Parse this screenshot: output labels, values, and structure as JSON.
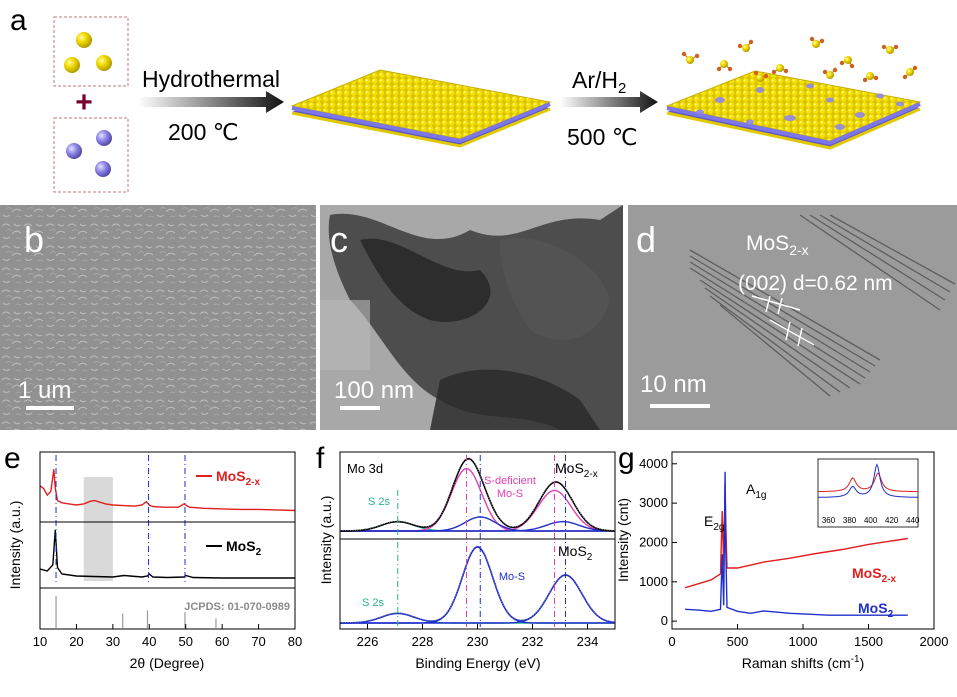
{
  "figure": {
    "panel_labels": [
      "a",
      "b",
      "c",
      "d",
      "e",
      "f",
      "g"
    ],
    "colors": {
      "sulfur": "#f0d800",
      "molybdenum": "#8c86e6",
      "red": "#e01f1f",
      "black": "#000000",
      "blue": "#1f2fcc",
      "pink": "#e040b0",
      "teal": "#27b38a",
      "gray": "#9a9a9a"
    }
  },
  "panel_a": {
    "step1": {
      "label": "Hydrothermal",
      "temp": "200 ℃"
    },
    "step2": {
      "label_main": "Ar/H",
      "label_sub": "2",
      "temp": "500 ℃"
    },
    "plus": "+"
  },
  "panel_b": {
    "scale_bar": "1 um"
  },
  "panel_c": {
    "scale_bar": "100 nm"
  },
  "panel_d": {
    "title_main": "MoS",
    "title_sub": "2-x",
    "annotation": "(002) d=0.62 nm",
    "scale_bar": "10 nm"
  },
  "chart_data": [
    {
      "type": "line",
      "panel": "e",
      "xlabel": "2θ (Degree)",
      "ylabel": "Intensity (a.u.)",
      "xlim": [
        10,
        80
      ],
      "xticks": [
        10,
        20,
        30,
        40,
        50,
        60,
        70,
        80
      ],
      "series": [
        {
          "name": "MoS2-x",
          "color": "#e01f1f",
          "x": [
            10,
            11,
            12,
            13,
            13.8,
            14.2,
            14.8,
            16,
            18,
            20,
            22,
            24,
            25,
            26,
            28,
            30,
            33,
            36,
            38,
            39.2,
            40,
            41,
            44,
            48,
            49.5,
            51,
            55,
            60,
            65,
            70,
            75,
            80
          ],
          "y": [
            0.55,
            0.5,
            0.38,
            0.45,
            0.85,
            0.5,
            0.28,
            0.24,
            0.22,
            0.2,
            0.22,
            0.27,
            0.28,
            0.26,
            0.22,
            0.2,
            0.19,
            0.18,
            0.2,
            0.26,
            0.2,
            0.17,
            0.16,
            0.16,
            0.22,
            0.16,
            0.14,
            0.13,
            0.12,
            0.12,
            0.11,
            0.1
          ]
        },
        {
          "name": "MoS2",
          "color": "#000000",
          "x": [
            10,
            12,
            13.5,
            14.2,
            14.8,
            16,
            20,
            25,
            30,
            33,
            38,
            39.5,
            40,
            41,
            45,
            49.5,
            50,
            52,
            60,
            70,
            80
          ],
          "y": [
            0.22,
            0.18,
            0.3,
            1.0,
            0.25,
            0.12,
            0.08,
            0.07,
            0.06,
            0.09,
            0.06,
            0.08,
            0.12,
            0.06,
            0.05,
            0.06,
            0.09,
            0.05,
            0.04,
            0.04,
            0.04
          ]
        },
        {
          "name": "JCPDS: 01-070-0989",
          "color": "#9a9a9a",
          "type": "stick",
          "x": [
            14.4,
            32.7,
            39.5,
            49.8,
            58.3
          ],
          "y": [
            1.0,
            0.45,
            0.55,
            0.5,
            0.3
          ]
        }
      ],
      "legend": [
        {
          "main": "MoS",
          "sub": "2-x",
          "color": "#e01f1f"
        },
        {
          "main": "MoS",
          "sub": "2",
          "color": "#000000"
        }
      ],
      "jcpds_label": "JCPDS: 01-070-0989",
      "highlight_range": [
        22,
        30
      ],
      "dashed_lines": [
        14.4,
        39.8,
        49.8
      ]
    },
    {
      "type": "line",
      "panel": "f",
      "xlabel": "Binding Energy (eV)",
      "ylabel": "Intensity (a.u.)",
      "xlim": [
        225,
        235
      ],
      "xticks": [
        226,
        228,
        230,
        232,
        234
      ],
      "title": "Mo 3d",
      "upper_label_main": "MoS",
      "upper_label_sub": "2-x",
      "lower_label_main": "MoS",
      "lower_label_sub": "2",
      "annotations": {
        "s2s_top": "S 2s",
        "s2s_bottom": "S 2s",
        "s_deficient_line1": "S-deficient",
        "s_deficient_line2": "Mo-S",
        "mo_s": "Mo-S"
      },
      "peaks_top": [
        {
          "name": "S 2s",
          "center": 227.1,
          "height": 0.12,
          "width": 0.6,
          "color": "#27b38a"
        },
        {
          "name": "S-deficient Mo 3d5/2",
          "center": 229.6,
          "height": 0.8,
          "width": 0.55,
          "color": "#e040b0"
        },
        {
          "name": "S-deficient Mo 3d3/2",
          "center": 232.8,
          "height": 0.52,
          "width": 0.6,
          "color": "#e040b0"
        },
        {
          "name": "Mo-S 3d5/2",
          "center": 230.1,
          "height": 0.18,
          "width": 0.55,
          "color": "#1f2fcc"
        },
        {
          "name": "Mo-S 3d3/2",
          "center": 233.1,
          "height": 0.12,
          "width": 0.6,
          "color": "#1f2fcc"
        }
      ],
      "peaks_bottom": [
        {
          "name": "S 2s",
          "center": 227.1,
          "height": 0.12,
          "width": 0.6,
          "color": "#27b38a"
        },
        {
          "name": "Mo-S 3d5/2",
          "center": 230.0,
          "height": 0.95,
          "width": 0.55,
          "color": "#1f2fcc"
        },
        {
          "name": "Mo-S 3d3/2",
          "center": 233.2,
          "height": 0.6,
          "width": 0.6,
          "color": "#1f2fcc"
        }
      ],
      "dashed_lines_pink": [
        229.6,
        232.8
      ],
      "dashed_lines_blue": [
        230.1,
        233.2
      ],
      "dashed_lines_teal": [
        227.1
      ]
    },
    {
      "type": "line",
      "panel": "g",
      "xlabel": "Raman shifts (cm",
      "xlabel_sup": "-1",
      "xlabel_end": ")",
      "ylabel": "Intensity (cnt)",
      "xlim": [
        0,
        2000
      ],
      "ylim": [
        -200,
        4300
      ],
      "xticks": [
        0,
        500,
        1000,
        1500,
        2000
      ],
      "yticks": [
        0,
        1000,
        2000,
        3000,
        4000
      ],
      "series": [
        {
          "name": "MoS2-x",
          "color": "#e01f1f",
          "x": [
            100,
            200,
            300,
            370,
            383,
            395,
            405,
            410,
            420,
            500,
            700,
            900,
            1100,
            1300,
            1500,
            1700,
            1800
          ],
          "y": [
            850,
            950,
            1050,
            1200,
            2800,
            1400,
            3500,
            2600,
            1350,
            1350,
            1500,
            1600,
            1720,
            1820,
            1950,
            2050,
            2100
          ]
        },
        {
          "name": "MoS2",
          "color": "#1f2fcc",
          "x": [
            100,
            200,
            300,
            370,
            383,
            395,
            405,
            410,
            420,
            500,
            600,
            700,
            900,
            1200,
            1500,
            1800
          ],
          "y": [
            300,
            280,
            250,
            300,
            1700,
            400,
            3800,
            1900,
            350,
            250,
            200,
            260,
            200,
            150,
            150,
            150
          ]
        }
      ],
      "labels": {
        "e2g_main": "E",
        "e2g_sub": "2g",
        "a1g_main": "A",
        "a1g_sub": "1g",
        "mos2x_main": "MoS",
        "mos2x_sub": "2-x",
        "mos2_main": "MoS",
        "mos2_sub": "2"
      },
      "inset": {
        "xticks": [
          360,
          380,
          400,
          420,
          440
        ],
        "xlim": [
          350,
          445
        ]
      }
    }
  ]
}
